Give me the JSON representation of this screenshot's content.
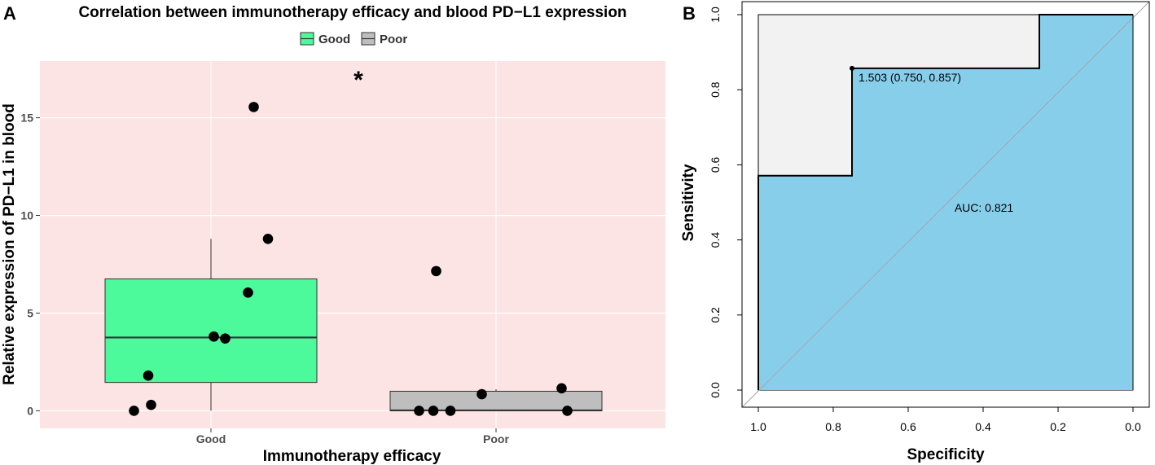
{
  "chart_data": [
    {
      "panel": "A",
      "type": "box",
      "title": "Correlation between immunotherapy efficacy and blood PD−L1 expression",
      "xlabel": "Immunotherapy efficacy",
      "ylabel": "Relative expression of PD−L1 in blood",
      "ylim": [
        -0.9,
        17.9
      ],
      "yticks": [
        0,
        5,
        10,
        15
      ],
      "categories": [
        "Good",
        "Poor"
      ],
      "legend": [
        {
          "label": "Good",
          "color": "#4CFA9C"
        },
        {
          "label": "Poor",
          "color": "#BEBEBE"
        }
      ],
      "significance": "*",
      "boxes": [
        {
          "category": "Good",
          "whisker_low": 0.0,
          "q1": 1.45,
          "median": 3.75,
          "q3": 6.75,
          "whisker_high": 8.8,
          "color": "#4CFA9C"
        },
        {
          "category": "Poor",
          "whisker_low": 0.0,
          "q1": 0.0,
          "median": 0.02,
          "q3": 1.0,
          "whisker_high": 1.1,
          "color": "#BEBEBE"
        }
      ],
      "points": [
        {
          "category": "Good",
          "jitter": -0.27,
          "value": 0.0
        },
        {
          "category": "Good",
          "jitter": -0.21,
          "value": 0.3
        },
        {
          "category": "Good",
          "jitter": -0.22,
          "value": 1.8
        },
        {
          "category": "Good",
          "jitter": 0.01,
          "value": 3.8
        },
        {
          "category": "Good",
          "jitter": 0.05,
          "value": 3.7
        },
        {
          "category": "Good",
          "jitter": 0.13,
          "value": 6.05
        },
        {
          "category": "Good",
          "jitter": 0.2,
          "value": 8.8
        },
        {
          "category": "Good",
          "jitter": 0.15,
          "value": 15.55
        },
        {
          "category": "Poor",
          "jitter": -0.27,
          "value": 0.0
        },
        {
          "category": "Poor",
          "jitter": -0.22,
          "value": 0.0
        },
        {
          "category": "Poor",
          "jitter": -0.16,
          "value": 0.0
        },
        {
          "category": "Poor",
          "jitter": -0.21,
          "value": 7.15
        },
        {
          "category": "Poor",
          "jitter": -0.05,
          "value": 0.85
        },
        {
          "category": "Poor",
          "jitter": 0.23,
          "value": 1.15
        },
        {
          "category": "Poor",
          "jitter": 0.25,
          "value": 0.0
        }
      ]
    },
    {
      "panel": "B",
      "type": "line",
      "subtype": "ROC",
      "xlabel": "Specificity",
      "ylabel": "Sensitivity",
      "xlim": [
        1.0,
        0.0
      ],
      "ylim": [
        0.0,
        1.0
      ],
      "xticks": [
        "1.0",
        "0.8",
        "0.6",
        "0.4",
        "0.2",
        "0.0"
      ],
      "yticks": [
        "0.0",
        "0.2",
        "0.4",
        "0.6",
        "0.8",
        "1.0"
      ],
      "roc_curve": [
        {
          "specificity": 1.0,
          "sensitivity": 0.0
        },
        {
          "specificity": 1.0,
          "sensitivity": 0.571
        },
        {
          "specificity": 0.75,
          "sensitivity": 0.571
        },
        {
          "specificity": 0.75,
          "sensitivity": 0.857
        },
        {
          "specificity": 0.25,
          "sensitivity": 0.857
        },
        {
          "specificity": 0.25,
          "sensitivity": 1.0
        },
        {
          "specificity": 0.0,
          "sensitivity": 1.0
        },
        {
          "specificity": 0.0,
          "sensitivity": 0.0
        }
      ],
      "auc_label": "AUC: 0.821",
      "threshold_point": {
        "specificity": 0.75,
        "sensitivity": 0.857,
        "label": "1.503 (0.750, 0.857)"
      },
      "colors": {
        "auc_fill": "#87CEEB",
        "ci_fill": "#F2F2F2",
        "diagonal": "#A6A6A6"
      }
    }
  ],
  "panel_labels": {
    "a": "A",
    "b": "B"
  }
}
